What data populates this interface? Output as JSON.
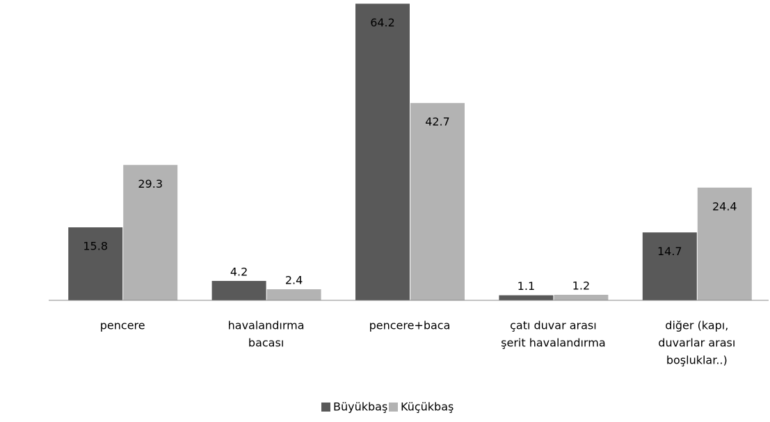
{
  "chart_data": {
    "type": "bar",
    "categories": [
      [
        "pencere"
      ],
      [
        "havalandırma",
        "bacası"
      ],
      [
        "pencere+baca"
      ],
      [
        "çatı duvar arası",
        "şerit havalandırma"
      ],
      [
        "diğer (kapı,",
        "duvarlar arası",
        "boşluklar..)"
      ]
    ],
    "series": [
      {
        "name": "Büyükbaş",
        "color": "#595959",
        "values": [
          15.8,
          4.2,
          64.2,
          1.1,
          14.7
        ]
      },
      {
        "name": "Küçükbaş",
        "color": "#b3b3b3",
        "values": [
          29.3,
          2.4,
          42.7,
          1.2,
          24.4
        ]
      }
    ],
    "ylim": [
      0,
      65
    ]
  }
}
